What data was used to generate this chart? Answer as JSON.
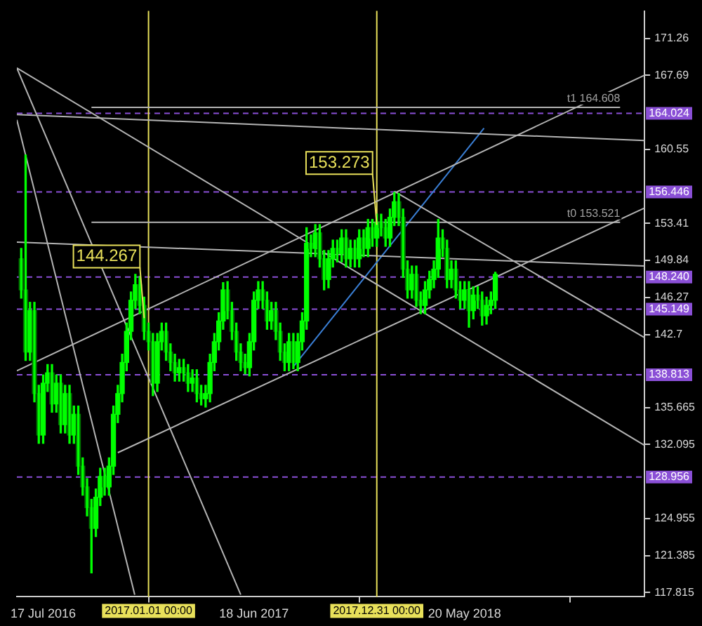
{
  "chart_data": {
    "type": "candlestick",
    "color": "#00ff00",
    "colors": [
      "#007000",
      "#007000",
      "#00ff00",
      "#007000",
      "#007000",
      "#00ff00",
      "#00ff00",
      "#007000",
      "#00ff00",
      "#007000",
      "#00ff00",
      "#007000",
      "#00ff00",
      "#007000",
      "#007000",
      "#007000",
      "#007000",
      "#00ff00",
      "#00ff00",
      "#007000",
      "#00ff00",
      "#00ff00",
      "#00ff00",
      "#00ff00",
      "#00ff00",
      "#00ff00",
      "#00ff00",
      "#007000",
      "#007000",
      "#007000",
      "#007000",
      "#00ff00",
      "#00ff00",
      "#007000",
      "#007000",
      "#007000",
      "#00ff00",
      "#007000",
      "#007000",
      "#00ff00",
      "#007000",
      "#007000",
      "#00ff00",
      "#00ff00",
      "#00ff00",
      "#00ff00",
      "#00ff00",
      "#007000",
      "#007000",
      "#007000",
      "#007000",
      "#007000",
      "#00ff00",
      "#00ff00",
      "#00ff00",
      "#007000",
      "#007000",
      "#00ff00",
      "#007000",
      "#007000",
      "#007000",
      "#00ff00",
      "#007000",
      "#00ff00",
      "#00ff00",
      "#00ff00",
      "#007000",
      "#00ff00",
      "#007000",
      "#007000",
      "#00ff00",
      "#00ff00",
      "#007000",
      "#00ff00",
      "#007000",
      "#00ff00",
      "#007000",
      "#00ff00",
      "#007000",
      "#00ff00",
      "#007000",
      "#00ff00",
      "#007000",
      "#007000",
      "#00ff00",
      "#00ff00",
      "#007000",
      "#007000",
      "#007000",
      "#00ff00",
      "#007000",
      "#007000",
      "#00ff00",
      "#00ff00",
      "#00ff00",
      "#00ff00",
      "#007000",
      "#007000",
      "#00ff00",
      "#007000",
      "#007000",
      "#00ff00",
      "#007000",
      "#00ff00",
      "#007000",
      "#007000",
      "#00ff00",
      "#00ff00",
      "#00ff00"
    ],
    "x": [
      "2016-06-12",
      "2016-06-19",
      "2016-06-26",
      "2016-07-03",
      "2016-07-10",
      "2016-07-17",
      "2016-07-24",
      "2016-07-31",
      "2016-08-07",
      "2016-08-14",
      "2016-08-21",
      "2016-08-28",
      "2016-09-04",
      "2016-09-11",
      "2016-09-18",
      "2016-09-25",
      "2016-10-02",
      "2016-10-09",
      "2016-10-16",
      "2016-10-23",
      "2016-10-30",
      "2016-11-06",
      "2016-11-13",
      "2016-11-20",
      "2016-11-27",
      "2016-12-04",
      "2016-12-11",
      "2016-12-18",
      "2016-12-25",
      "2017-01-01",
      "2017-01-08",
      "2017-01-15",
      "2017-01-22",
      "2017-01-29",
      "2017-02-05",
      "2017-02-12",
      "2017-02-19",
      "2017-02-26",
      "2017-03-05",
      "2017-03-12",
      "2017-03-19",
      "2017-03-26",
      "2017-04-02",
      "2017-04-09",
      "2017-04-16",
      "2017-04-23",
      "2017-04-30",
      "2017-05-07",
      "2017-05-14",
      "2017-05-21",
      "2017-05-28",
      "2017-06-04",
      "2017-06-11",
      "2017-06-18",
      "2017-06-25",
      "2017-07-02",
      "2017-07-09",
      "2017-07-16",
      "2017-07-23",
      "2017-07-30",
      "2017-08-06",
      "2017-08-13",
      "2017-08-20",
      "2017-08-27",
      "2017-09-03",
      "2017-09-10",
      "2017-09-17",
      "2017-09-24",
      "2017-10-01",
      "2017-10-08",
      "2017-10-15",
      "2017-10-22",
      "2017-10-29",
      "2017-11-05",
      "2017-11-12",
      "2017-11-19",
      "2017-11-26",
      "2017-12-03",
      "2017-12-10",
      "2017-12-17",
      "2017-12-24",
      "2017-12-31",
      "2018-01-07",
      "2018-01-14",
      "2018-01-21",
      "2018-01-28",
      "2018-02-04",
      "2018-02-11",
      "2018-02-18",
      "2018-02-25",
      "2018-03-04",
      "2018-03-11",
      "2018-03-18",
      "2018-03-25",
      "2018-04-01",
      "2018-04-08",
      "2018-04-15",
      "2018-04-22",
      "2018-04-29",
      "2018-05-06",
      "2018-05-13",
      "2018-05-20",
      "2018-05-27",
      "2018-06-03",
      "2018-06-10",
      "2018-06-17",
      "2018-06-24",
      "2018-07-01",
      "2018-07-08"
    ],
    "ohlc": [
      [
        150,
        151,
        146.2,
        147
      ],
      [
        147,
        160,
        140.2,
        141
      ],
      [
        141,
        145.8,
        140.2,
        145
      ],
      [
        145,
        145.8,
        136.2,
        137
      ],
      [
        137,
        137.8,
        132.2,
        133
      ],
      [
        133,
        138.8,
        132.2,
        138
      ],
      [
        138,
        139.8,
        137.2,
        139
      ],
      [
        139,
        139.8,
        135.2,
        136
      ],
      [
        136,
        138.8,
        135.2,
        138
      ],
      [
        138,
        138.8,
        133.2,
        134
      ],
      [
        134,
        137.8,
        133.2,
        137
      ],
      [
        137,
        137.8,
        132.2,
        133
      ],
      [
        133,
        135.8,
        132.2,
        135
      ],
      [
        135,
        135.8,
        129.2,
        130
      ],
      [
        130,
        130.8,
        127.2,
        128
      ],
      [
        128,
        128.8,
        125.2,
        126
      ],
      [
        126,
        126.8,
        119.7,
        124
      ],
      [
        124,
        127.8,
        123.2,
        127
      ],
      [
        127,
        129.8,
        126.2,
        129
      ],
      [
        129,
        129.8,
        127.2,
        128
      ],
      [
        128,
        130.8,
        127.2,
        130
      ],
      [
        130,
        135.8,
        129.2,
        135
      ],
      [
        135,
        137.8,
        134.2,
        137
      ],
      [
        137,
        140.8,
        136.2,
        140
      ],
      [
        140,
        143.8,
        139.2,
        143
      ],
      [
        143,
        146.8,
        142.2,
        146
      ],
      [
        146,
        148.5,
        145.2,
        147.5
      ],
      [
        147.5,
        148.3,
        144.7,
        145.5
      ],
      [
        145.5,
        146.3,
        142.2,
        143
      ],
      [
        143,
        143.8,
        141.2,
        142
      ],
      [
        142,
        142.8,
        136.8,
        138
      ],
      [
        138,
        142.8,
        137.2,
        142
      ],
      [
        142,
        143.8,
        141.2,
        143
      ],
      [
        143,
        143.8,
        140.2,
        141
      ],
      [
        141,
        141.8,
        139.2,
        140
      ],
      [
        140,
        140.8,
        138.2,
        139
      ],
      [
        139,
        140.3,
        138.2,
        139.5
      ],
      [
        139.5,
        140.3,
        138.2,
        139
      ],
      [
        139,
        139.8,
        137.2,
        138
      ],
      [
        138,
        139.3,
        137.2,
        138.5
      ],
      [
        138.5,
        139.3,
        136.2,
        137
      ],
      [
        137,
        137.8,
        135.9,
        136.5
      ],
      [
        136.5,
        137.8,
        135.7,
        137
      ],
      [
        137,
        140.8,
        136.2,
        140
      ],
      [
        140,
        142.8,
        139.2,
        142
      ],
      [
        142,
        144.8,
        141.2,
        144
      ],
      [
        144,
        147.7,
        143.2,
        147
      ],
      [
        147,
        147.8,
        144.2,
        145
      ],
      [
        145,
        145.8,
        142.2,
        143
      ],
      [
        143,
        143.8,
        140.2,
        141
      ],
      [
        141,
        141.8,
        139.2,
        140
      ],
      [
        140,
        140.8,
        138.9,
        139.5
      ],
      [
        139.5,
        142.8,
        138.7,
        142
      ],
      [
        142,
        146.8,
        141.2,
        146
      ],
      [
        146,
        147.8,
        145.2,
        147
      ],
      [
        147,
        147.8,
        145.2,
        146
      ],
      [
        146,
        146.8,
        143.2,
        144
      ],
      [
        144,
        145.8,
        143.2,
        145
      ],
      [
        145,
        145.8,
        142.2,
        143
      ],
      [
        143,
        143.8,
        140.2,
        141
      ],
      [
        141,
        141.8,
        139.2,
        140
      ],
      [
        140,
        142.8,
        139.2,
        142
      ],
      [
        142,
        142.8,
        139.4,
        140
      ],
      [
        140,
        142.8,
        139.2,
        142
      ],
      [
        142,
        144.8,
        141.2,
        144
      ],
      [
        144,
        153,
        143.2,
        151.5
      ],
      [
        151.5,
        152.3,
        150.2,
        151
      ],
      [
        151,
        153.3,
        150.2,
        152.5
      ],
      [
        152.5,
        153.3,
        149.2,
        150
      ],
      [
        150,
        150.8,
        147,
        148
      ],
      [
        148,
        150.8,
        147.2,
        150
      ],
      [
        150,
        151.8,
        149.2,
        151
      ],
      [
        151,
        151.8,
        149.7,
        150.5
      ],
      [
        150.5,
        152.8,
        149.7,
        152
      ],
      [
        152,
        152.8,
        149.2,
        150
      ],
      [
        150,
        151.8,
        149.2,
        151
      ],
      [
        151,
        151.8,
        149.2,
        150
      ],
      [
        150,
        152.8,
        149.2,
        152
      ],
      [
        152,
        152.8,
        150.2,
        151
      ],
      [
        151,
        153.8,
        150.2,
        153
      ],
      [
        153,
        153.8,
        151.2,
        152
      ],
      [
        152,
        154.3,
        151.2,
        153.5
      ],
      [
        153.5,
        154.3,
        152.2,
        153
      ],
      [
        153,
        153.8,
        151.2,
        152
      ],
      [
        152,
        154.8,
        151.2,
        154
      ],
      [
        154,
        156.4,
        153.2,
        155.5
      ],
      [
        155.5,
        156.3,
        153.2,
        154
      ],
      [
        154,
        154.8,
        148.2,
        149
      ],
      [
        149,
        149.8,
        146.2,
        147
      ],
      [
        147,
        149.3,
        146.2,
        148.5
      ],
      [
        148.5,
        149.3,
        145.4,
        146
      ],
      [
        146,
        146.8,
        144.7,
        145.5
      ],
      [
        145.5,
        147.8,
        144.7,
        147
      ],
      [
        147,
        148.8,
        146.2,
        148
      ],
      [
        148,
        149.8,
        147.2,
        149
      ],
      [
        149,
        153.8,
        148.2,
        152
      ],
      [
        152,
        152.8,
        150.2,
        151
      ],
      [
        151,
        151.8,
        147.2,
        148
      ],
      [
        148,
        149.8,
        147.2,
        149
      ],
      [
        149,
        149.8,
        146.2,
        147
      ],
      [
        147,
        147.8,
        145.2,
        146
      ],
      [
        146,
        147.8,
        145.2,
        147
      ],
      [
        147,
        147.8,
        143.4,
        145
      ],
      [
        145,
        147.3,
        144.2,
        146.5
      ],
      [
        146.5,
        147.3,
        145.2,
        146
      ],
      [
        146,
        146.8,
        143.6,
        144.5
      ],
      [
        144.5,
        146.3,
        143.7,
        145.5
      ],
      [
        145.5,
        146.8,
        144.7,
        146
      ],
      [
        146,
        148.7,
        145.2,
        148.5
      ]
    ],
    "series": [
      {
        "type": "line",
        "color": "#b4b4b4",
        "x": [
          "2016-06-05",
          "2017-05-28"
        ],
        "values": [
          168.4,
          117.6
        ]
      },
      {
        "type": "line",
        "color": "#b4b4b4",
        "x": [
          "2016-06-05",
          "2016-12-10"
        ],
        "values": [
          163.4,
          117.6
        ]
      },
      {
        "type": "line",
        "color": "#b4b4b4",
        "x": [
          "2016-06-05",
          "2019-03-03"
        ],
        "values": [
          168.4,
          132
        ]
      },
      {
        "type": "line",
        "color": "#b4b4b4",
        "x": [
          "2018-01-28",
          "2019-03-03"
        ],
        "values": [
          156.5,
          142.4
        ]
      },
      {
        "type": "line",
        "color": "#b4b4b4",
        "x": [
          "2016-11-13",
          "2019-03-03"
        ],
        "values": [
          131.3,
          154.9
        ]
      },
      {
        "type": "line",
        "color": "#b4b4b4",
        "x": [
          "2016-06-05",
          "2019-03-03"
        ],
        "values": [
          139.2,
          167.7
        ]
      },
      {
        "type": "line",
        "color": "#b4b4b4",
        "x": [
          "2016-06-05",
          "2019-03-03"
        ],
        "values": [
          151.6,
          149.3
        ]
      },
      {
        "type": "line",
        "color": "#b4b4b4",
        "x": [
          "2016-06-05",
          "2019-03-03"
        ],
        "values": [
          163.9,
          161.4
        ]
      },
      {
        "type": "line",
        "color": "#b4b4b4",
        "x": [
          "2016-10-02",
          "2019-01-23"
        ],
        "values": [
          164.608,
          164.608
        ]
      },
      {
        "type": "line",
        "color": "#b4b4b4",
        "x": [
          "2016-10-02",
          "2019-01-23"
        ],
        "values": [
          153.521,
          153.521
        ]
      },
      {
        "type": "line",
        "color": "#3a7fd5",
        "x": [
          "2017-08-20",
          "2018-06-20"
        ],
        "values": [
          139.6,
          162.6
        ]
      }
    ],
    "ref_lines": [
      {
        "axis": "y",
        "value": 164.024,
        "label": "164.024",
        "color": "#8a4fd6",
        "line_style": "dashed"
      },
      {
        "axis": "y",
        "value": 156.446,
        "label": "156.446",
        "color": "#8a4fd6",
        "line_style": "dashed"
      },
      {
        "axis": "y",
        "value": 148.24,
        "label": "148.240",
        "color": "#8a4fd6",
        "line_style": "dashed"
      },
      {
        "axis": "y",
        "value": 145.149,
        "label": "145.149",
        "color": "#8a4fd6",
        "line_style": "dashed"
      },
      {
        "axis": "y",
        "value": 138.813,
        "label": "138.813",
        "color": "#8a4fd6",
        "line_style": "dashed"
      },
      {
        "axis": "y",
        "value": 128.956,
        "label": "128.956",
        "color": "#8a4fd6",
        "line_style": "dashed"
      },
      {
        "axis": "x",
        "value": "2017-01-01",
        "label": "2017.01.01 00:00",
        "color": "#e8e05a",
        "line_style": "solid"
      },
      {
        "axis": "x",
        "value": "2017-12-31",
        "label": "2017.12.31 00:00",
        "color": "#e8e05a",
        "line_style": "solid"
      }
    ],
    "annotations": [
      {
        "text": "144.267",
        "x": "2016-12-25",
        "y": 144.267
      },
      {
        "text": "153.273",
        "x": "2017-12-31",
        "y": 153.273
      },
      {
        "text": "t1 164.608",
        "x": "2019-01-23",
        "y": 164.608
      },
      {
        "text": "t0 153.521",
        "x": "2019-01-23",
        "y": 153.521
      }
    ],
    "xlim": [
      "2016-06-05",
      "2019-03-03"
    ],
    "xticks": [
      {
        "value": "2016-07-17",
        "label": "17 Jul 2016"
      },
      {
        "value": "2017-06-18",
        "label": "18 Jun 2017"
      },
      {
        "value": "2018-05-20",
        "label": "20 May 2018"
      }
    ],
    "ylim": [
      117.4,
      173.9
    ],
    "yticks": [
      171.26,
      167.69,
      160.55,
      153.41,
      149.84,
      146.27,
      142.7,
      135.665,
      132.095,
      124.955,
      121.385,
      117.815
    ],
    "grid": false,
    "legend": false
  }
}
